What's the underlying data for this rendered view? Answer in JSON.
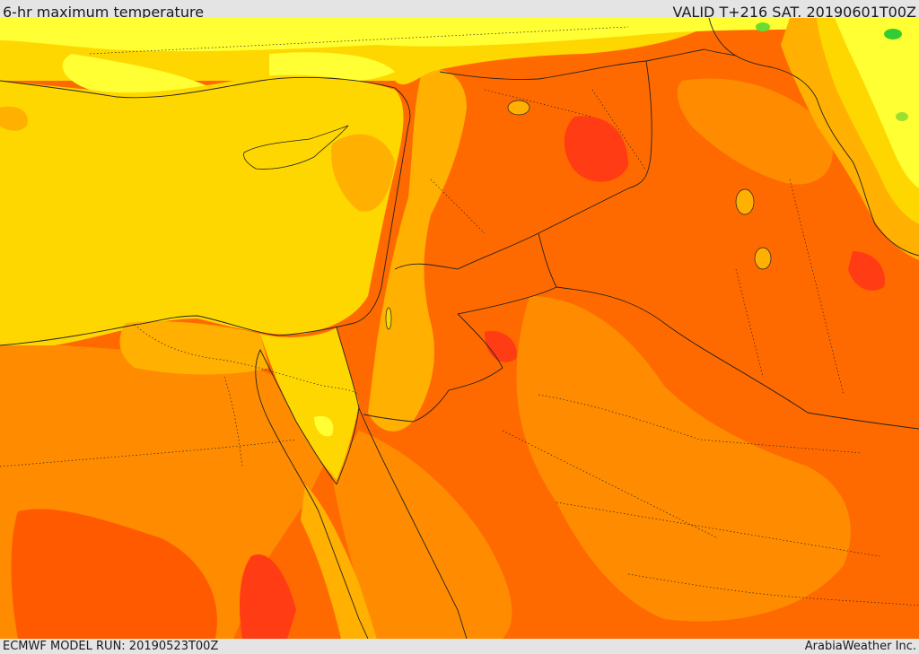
{
  "header": {
    "title": "6-hr maximum temperature",
    "valid_time": "VALID T+216 SAT. 20190601T00Z"
  },
  "footer": {
    "model_run": "ECMWF MODEL RUN: 20190523T00Z",
    "credit": "ArabiaWeather Inc."
  },
  "colors": {
    "light_yellow": "#ffff33",
    "yellow": "#ffd700",
    "gold": "#ffb000",
    "orange": "#ff8c00",
    "dark_orange": "#ff5a00",
    "red_orange": "#ff3c14",
    "green": "#33cc33"
  }
}
